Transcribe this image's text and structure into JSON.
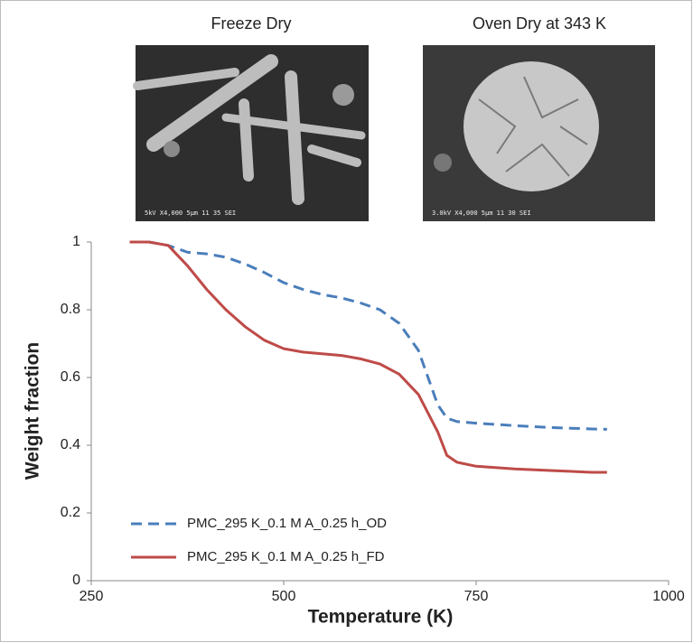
{
  "images": [
    {
      "title": "Freeze Dry",
      "caption": "5kV X4,000 5μm 11 35 SEI"
    },
    {
      "title": "Oven Dry at 343 K",
      "caption": "3.0kV X4,000 5μm 11 30 SEI"
    }
  ],
  "chart_data": {
    "type": "line",
    "xlabel": "Temperature (K)",
    "ylabel": "Weight fraction",
    "x": [
      300,
      325,
      350,
      375,
      400,
      425,
      450,
      475,
      500,
      525,
      550,
      575,
      600,
      625,
      650,
      675,
      700,
      712,
      725,
      750,
      800,
      850,
      900,
      920
    ],
    "series": [
      {
        "name": "PMC_295 K_0.1 M A_0.25 h_OD",
        "color": "#4a7ebb",
        "dash": true,
        "values": [
          1,
          1,
          0.99,
          0.97,
          0.965,
          0.955,
          0.935,
          0.91,
          0.88,
          0.86,
          0.845,
          0.835,
          0.82,
          0.8,
          0.76,
          0.68,
          0.52,
          0.48,
          0.47,
          0.465,
          0.458,
          0.452,
          0.448,
          0.447
        ]
      },
      {
        "name": "PMC_295 K_0.1 M A_0.25 h_FD",
        "color": "#be4b48",
        "dash": false,
        "values": [
          1,
          1,
          0.99,
          0.93,
          0.86,
          0.8,
          0.75,
          0.71,
          0.685,
          0.675,
          0.67,
          0.665,
          0.655,
          0.64,
          0.61,
          0.55,
          0.44,
          0.37,
          0.35,
          0.338,
          0.33,
          0.325,
          0.32,
          0.32
        ]
      }
    ],
    "xlim": [
      250,
      1000
    ],
    "xticks": [
      250,
      500,
      750,
      1000
    ],
    "ylim": [
      0,
      1
    ],
    "yticks": [
      0,
      0.2,
      0.4,
      0.6,
      0.8,
      1
    ],
    "grid": false,
    "legend": "lower left"
  }
}
